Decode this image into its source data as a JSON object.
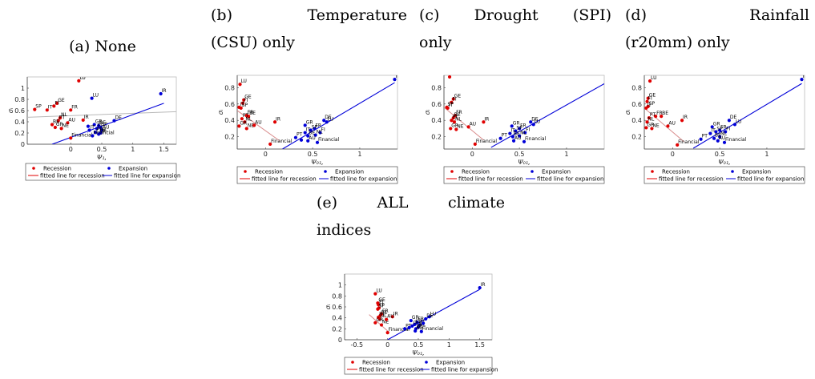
{
  "colors": {
    "recession": "#e00000",
    "expansion": "#0000d8",
    "recession_line": "#d88a8a",
    "recession_line_a": "#b8b8b8"
  },
  "legend": {
    "recession": "Recession",
    "expansion": "Expansion",
    "fit_recession": "fitted line for recession",
    "fit_expansion": "fitted line for expansion"
  },
  "chart_data": [
    {
      "id": "a",
      "type": "scatter",
      "title": "(a) None",
      "xlabel": "Ψ₁,",
      "ylabel": "σᵢ",
      "xlim": [
        -0.7,
        1.7
      ],
      "ylim": [
        0,
        1.2
      ],
      "xticks": [
        0,
        0.5,
        1,
        1.5
      ],
      "yticks": [
        0,
        0.2,
        0.4,
        0.6,
        0.8,
        1
      ],
      "legend_position": "bottom",
      "recession_points": [
        {
          "x": 0.13,
          "y": 1.13,
          "label": "LU"
        },
        {
          "x": -0.58,
          "y": 0.62,
          "label": "SP"
        },
        {
          "x": -0.38,
          "y": 0.61,
          "label": "IT"
        },
        {
          "x": -0.22,
          "y": 0.73,
          "label": "GE"
        },
        {
          "x": -0.27,
          "y": 0.68,
          "label": "FI"
        },
        {
          "x": 0.0,
          "y": 0.61,
          "label": "FR"
        },
        {
          "x": -0.17,
          "y": 0.47,
          "label": "NL"
        },
        {
          "x": -0.2,
          "y": 0.42,
          "label": "PT"
        },
        {
          "x": -0.05,
          "y": 0.38,
          "label": "AU"
        },
        {
          "x": -0.3,
          "y": 0.35,
          "label": "BE"
        },
        {
          "x": -0.25,
          "y": 0.3,
          "label": "GR"
        },
        {
          "x": -0.15,
          "y": 0.28,
          "label": "NE"
        },
        {
          "x": 0.2,
          "y": 0.43,
          "label": "IR"
        },
        {
          "x": 0.0,
          "y": 0.11,
          "label": "Financial"
        }
      ],
      "expansion_points": [
        {
          "x": 1.45,
          "y": 0.9,
          "label": "IR"
        },
        {
          "x": 0.34,
          "y": 0.82,
          "label": "LU"
        },
        {
          "x": 0.7,
          "y": 0.42,
          "label": "DE"
        },
        {
          "x": 0.38,
          "y": 0.35,
          "label": "GR"
        },
        {
          "x": 0.45,
          "y": 0.33,
          "label": "BE"
        },
        {
          "x": 0.48,
          "y": 0.3,
          "label": "SP"
        },
        {
          "x": 0.42,
          "y": 0.28,
          "label": "FI"
        },
        {
          "x": 0.5,
          "y": 0.25,
          "label": "AU"
        },
        {
          "x": 0.3,
          "y": 0.25,
          "label": "IT"
        },
        {
          "x": 0.48,
          "y": 0.2,
          "label": "NL"
        },
        {
          "x": 0.4,
          "y": 0.21,
          "label": "PT"
        },
        {
          "x": 0.45,
          "y": 0.18,
          "label": "FR"
        },
        {
          "x": 0.28,
          "y": 0.32,
          "label": ""
        },
        {
          "x": 0.35,
          "y": 0.15,
          "label": "Financial"
        }
      ],
      "fit_recession": [
        [
          -0.7,
          0.48
        ],
        [
          1.7,
          0.58
        ]
      ],
      "fit_expansion": [
        [
          -0.3,
          0.0
        ],
        [
          1.5,
          0.73
        ]
      ]
    },
    {
      "id": "b",
      "type": "scatter",
      "title": "(b) Temperature (CSU) only",
      "xlabel": "Ψ₀₁,",
      "ylabel": "σᵢ",
      "xlim": [
        -0.3,
        1.4
      ],
      "ylim": [
        0.05,
        0.95
      ],
      "xticks": [
        0,
        0.5,
        1
      ],
      "yticks": [
        0.2,
        0.4,
        0.6,
        0.8
      ],
      "legend_position": "bottom",
      "recession_points": [
        {
          "x": -0.27,
          "y": 0.84,
          "label": "LU"
        },
        {
          "x": -0.23,
          "y": 0.65,
          "label": "GE"
        },
        {
          "x": -0.24,
          "y": 0.61,
          "label": "FI"
        },
        {
          "x": -0.28,
          "y": 0.56,
          "label": "IT"
        },
        {
          "x": -0.26,
          "y": 0.55,
          "label": "SP"
        },
        {
          "x": -0.2,
          "y": 0.46,
          "label": "FR"
        },
        {
          "x": -0.18,
          "y": 0.45,
          "label": "BE"
        },
        {
          "x": -0.25,
          "y": 0.42,
          "label": "PT"
        },
        {
          "x": -0.22,
          "y": 0.38,
          "label": "NL"
        },
        {
          "x": -0.28,
          "y": 0.33,
          "label": "GR"
        },
        {
          "x": -0.2,
          "y": 0.3,
          "label": "NE"
        },
        {
          "x": 0.1,
          "y": 0.38,
          "label": "IR"
        },
        {
          "x": -0.12,
          "y": 0.34,
          "label": "AU"
        },
        {
          "x": 0.05,
          "y": 0.11,
          "label": "Financial"
        }
      ],
      "expansion_points": [
        {
          "x": 1.37,
          "y": 0.9,
          "label": "IR"
        },
        {
          "x": 0.62,
          "y": 0.4,
          "label": "DE"
        },
        {
          "x": 0.65,
          "y": 0.38,
          "label": "LU"
        },
        {
          "x": 0.42,
          "y": 0.34,
          "label": "GR"
        },
        {
          "x": 0.52,
          "y": 0.3,
          "label": "FR"
        },
        {
          "x": 0.48,
          "y": 0.28,
          "label": "SP"
        },
        {
          "x": 0.58,
          "y": 0.25,
          "label": "FI"
        },
        {
          "x": 0.42,
          "y": 0.25,
          "label": "IT"
        },
        {
          "x": 0.53,
          "y": 0.22,
          "label": "NL"
        },
        {
          "x": 0.45,
          "y": 0.21,
          "label": "BE"
        },
        {
          "x": 0.32,
          "y": 0.19,
          "label": "PT"
        },
        {
          "x": 0.45,
          "y": 0.15,
          "label": "AU"
        },
        {
          "x": 0.55,
          "y": 0.13,
          "label": "Financial"
        },
        {
          "x": 0.38,
          "y": 0.16,
          "label": ""
        }
      ],
      "fit_recession": [
        [
          -0.3,
          0.52
        ],
        [
          0.15,
          0.15
        ]
      ],
      "fit_expansion": [
        [
          0.18,
          0.05
        ],
        [
          1.37,
          0.86
        ]
      ]
    },
    {
      "id": "c",
      "type": "scatter",
      "title": "(c) Drought (SPI) only",
      "xlabel": "Ψ₀₁,",
      "ylabel": "σᵢ",
      "xlim": [
        -0.3,
        1.4
      ],
      "ylim": [
        0.05,
        0.95
      ],
      "xticks": [
        0,
        0.5,
        1
      ],
      "yticks": [
        0.2,
        0.4,
        0.6,
        0.8
      ],
      "legend_position": "bottom",
      "recession_points": [
        {
          "x": -0.24,
          "y": 0.93,
          "label": "LU"
        },
        {
          "x": -0.2,
          "y": 0.66,
          "label": "GE"
        },
        {
          "x": -0.22,
          "y": 0.62,
          "label": "FI"
        },
        {
          "x": -0.27,
          "y": 0.56,
          "label": "SP"
        },
        {
          "x": -0.26,
          "y": 0.55,
          "label": "IT"
        },
        {
          "x": -0.18,
          "y": 0.46,
          "label": "FR"
        },
        {
          "x": -0.2,
          "y": 0.43,
          "label": "BE"
        },
        {
          "x": -0.22,
          "y": 0.4,
          "label": "PT"
        },
        {
          "x": -0.19,
          "y": 0.38,
          "label": "NL"
        },
        {
          "x": -0.23,
          "y": 0.3,
          "label": "GR"
        },
        {
          "x": -0.17,
          "y": 0.29,
          "label": "NE"
        },
        {
          "x": 0.12,
          "y": 0.38,
          "label": "IR"
        },
        {
          "x": -0.04,
          "y": 0.32,
          "label": "AU"
        },
        {
          "x": 0.03,
          "y": 0.11,
          "label": "Financial"
        }
      ],
      "expansion_points": [
        {
          "x": 1.42,
          "y": 0.88,
          "label": "IR"
        },
        {
          "x": 0.62,
          "y": 0.38,
          "label": "DE"
        },
        {
          "x": 0.65,
          "y": 0.35,
          "label": "LU"
        },
        {
          "x": 0.42,
          "y": 0.33,
          "label": "GR"
        },
        {
          "x": 0.5,
          "y": 0.3,
          "label": "FR"
        },
        {
          "x": 0.46,
          "y": 0.27,
          "label": "SP"
        },
        {
          "x": 0.56,
          "y": 0.25,
          "label": "FI"
        },
        {
          "x": 0.4,
          "y": 0.24,
          "label": "IT"
        },
        {
          "x": 0.5,
          "y": 0.21,
          "label": "NL"
        },
        {
          "x": 0.43,
          "y": 0.2,
          "label": "BE"
        },
        {
          "x": 0.3,
          "y": 0.18,
          "label": "PT"
        },
        {
          "x": 0.44,
          "y": 0.15,
          "label": "AU"
        },
        {
          "x": 0.55,
          "y": 0.14,
          "label": "Financial"
        }
      ],
      "fit_recession": [
        [
          -0.3,
          0.56
        ],
        [
          0.12,
          0.16
        ]
      ],
      "fit_expansion": [
        [
          0.2,
          0.07
        ],
        [
          1.42,
          0.86
        ]
      ]
    },
    {
      "id": "d",
      "type": "scatter",
      "title": "(d) Rainfall (r20mm) only",
      "xlabel": "Ψ₀₁,",
      "ylabel": "σᵢ",
      "xlim": [
        -0.3,
        1.4
      ],
      "ylim": [
        0.05,
        0.95
      ],
      "xticks": [
        0,
        0.5,
        1
      ],
      "yticks": [
        0.2,
        0.4,
        0.6,
        0.8
      ],
      "legend_position": "bottom",
      "recession_points": [
        {
          "x": -0.24,
          "y": 0.88,
          "label": "LU"
        },
        {
          "x": -0.26,
          "y": 0.67,
          "label": "GE"
        },
        {
          "x": -0.27,
          "y": 0.63,
          "label": "FI"
        },
        {
          "x": -0.26,
          "y": 0.57,
          "label": "SP"
        },
        {
          "x": -0.28,
          "y": 0.55,
          "label": "IT"
        },
        {
          "x": -0.18,
          "y": 0.45,
          "label": "FR"
        },
        {
          "x": -0.12,
          "y": 0.45,
          "label": "BE"
        },
        {
          "x": -0.25,
          "y": 0.43,
          "label": "PT"
        },
        {
          "x": -0.27,
          "y": 0.38,
          "label": "NL"
        },
        {
          "x": -0.28,
          "y": 0.31,
          "label": "GR"
        },
        {
          "x": -0.22,
          "y": 0.3,
          "label": "NE"
        },
        {
          "x": 0.1,
          "y": 0.4,
          "label": "IR"
        },
        {
          "x": -0.05,
          "y": 0.33,
          "label": "AU"
        },
        {
          "x": 0.05,
          "y": 0.1,
          "label": "Financial"
        }
      ],
      "expansion_points": [
        {
          "x": 1.37,
          "y": 0.9,
          "label": "IR"
        },
        {
          "x": 0.6,
          "y": 0.4,
          "label": "DE"
        },
        {
          "x": 0.66,
          "y": 0.35,
          "label": "LU"
        },
        {
          "x": 0.42,
          "y": 0.32,
          "label": "GR"
        },
        {
          "x": 0.5,
          "y": 0.28,
          "label": "FR"
        },
        {
          "x": 0.46,
          "y": 0.26,
          "label": "SP"
        },
        {
          "x": 0.56,
          "y": 0.26,
          "label": "FI"
        },
        {
          "x": 0.4,
          "y": 0.24,
          "label": "IT"
        },
        {
          "x": 0.5,
          "y": 0.2,
          "label": "NL"
        },
        {
          "x": 0.44,
          "y": 0.18,
          "label": "BE"
        },
        {
          "x": 0.3,
          "y": 0.17,
          "label": "PT"
        },
        {
          "x": 0.48,
          "y": 0.15,
          "label": "AU"
        },
        {
          "x": 0.55,
          "y": 0.13,
          "label": "Financial"
        }
      ],
      "fit_recession": [
        [
          -0.3,
          0.55
        ],
        [
          0.12,
          0.14
        ]
      ],
      "fit_expansion": [
        [
          0.22,
          0.06
        ],
        [
          1.37,
          0.85
        ]
      ]
    },
    {
      "id": "e",
      "type": "scatter",
      "title": "(e) ALL climate indices",
      "xlabel": "Ψ₀₁,",
      "ylabel": "σᵢ",
      "xlim": [
        -0.7,
        1.7
      ],
      "ylim": [
        0,
        1.2
      ],
      "xticks": [
        -0.5,
        0,
        0.5,
        1,
        1.5
      ],
      "yticks": [
        0,
        0.2,
        0.4,
        0.6,
        0.8,
        1
      ],
      "legend_position": "bottom",
      "recession_points": [
        {
          "x": -0.2,
          "y": 0.84,
          "label": "LU"
        },
        {
          "x": -0.16,
          "y": 0.67,
          "label": "GE"
        },
        {
          "x": -0.15,
          "y": 0.64,
          "label": "FI"
        },
        {
          "x": -0.14,
          "y": 0.58,
          "label": "IT"
        },
        {
          "x": -0.16,
          "y": 0.56,
          "label": "SP"
        },
        {
          "x": -0.1,
          "y": 0.47,
          "label": "FR"
        },
        {
          "x": -0.12,
          "y": 0.44,
          "label": "BE"
        },
        {
          "x": -0.15,
          "y": 0.41,
          "label": "PT"
        },
        {
          "x": -0.13,
          "y": 0.38,
          "label": "NL"
        },
        {
          "x": -0.2,
          "y": 0.31,
          "label": "GR"
        },
        {
          "x": -0.1,
          "y": 0.27,
          "label": "NE"
        },
        {
          "x": 0.08,
          "y": 0.42,
          "label": "IR"
        },
        {
          "x": -0.02,
          "y": 0.37,
          "label": "AU"
        },
        {
          "x": 0.0,
          "y": 0.13,
          "label": "Financial"
        }
      ],
      "expansion_points": [
        {
          "x": 1.5,
          "y": 0.95,
          "label": "IR"
        },
        {
          "x": 0.68,
          "y": 0.42,
          "label": "LU"
        },
        {
          "x": 0.62,
          "y": 0.38,
          "label": "DE"
        },
        {
          "x": 0.38,
          "y": 0.35,
          "label": "GR"
        },
        {
          "x": 0.48,
          "y": 0.32,
          "label": "FR"
        },
        {
          "x": 0.44,
          "y": 0.28,
          "label": "SP"
        },
        {
          "x": 0.52,
          "y": 0.27,
          "label": "FI"
        },
        {
          "x": 0.4,
          "y": 0.25,
          "label": "IT"
        },
        {
          "x": 0.5,
          "y": 0.23,
          "label": "NL"
        },
        {
          "x": 0.46,
          "y": 0.2,
          "label": "BE"
        },
        {
          "x": 0.28,
          "y": 0.2,
          "label": "PT"
        },
        {
          "x": 0.45,
          "y": 0.16,
          "label": "AU"
        },
        {
          "x": 0.55,
          "y": 0.15,
          "label": "Financial"
        },
        {
          "x": 0.35,
          "y": 0.22,
          "label": ""
        },
        {
          "x": 0.58,
          "y": 0.3,
          "label": ""
        }
      ],
      "fit_recession": [
        [
          -0.3,
          0.46
        ],
        [
          0.02,
          0.14
        ]
      ],
      "fit_expansion": [
        [
          0.0,
          0.0
        ],
        [
          1.5,
          0.92
        ]
      ]
    }
  ]
}
